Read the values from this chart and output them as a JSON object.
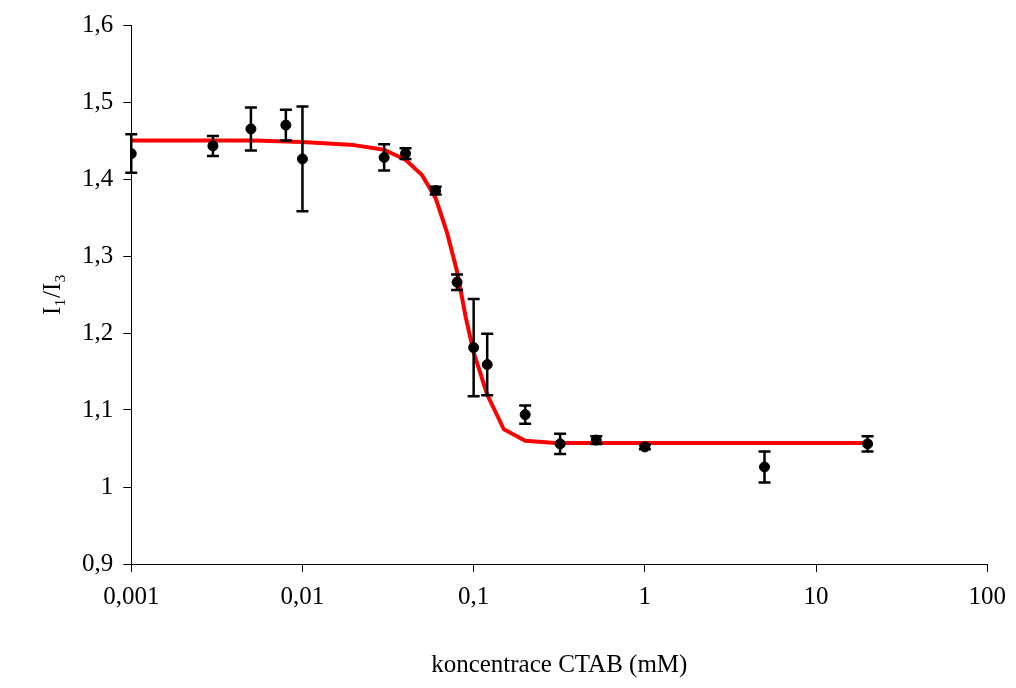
{
  "chart_data": {
    "type": "scatter",
    "xlabel": "koncentrace CTAB (mM)",
    "ylabel": "I₁/I₃",
    "log": "x",
    "grid": false,
    "legend": false,
    "marker": "circle",
    "xlim": [
      0.001,
      100
    ],
    "xticks": [
      {
        "value": 0.001,
        "label": "0,001"
      },
      {
        "value": 0.01,
        "label": "0,01"
      },
      {
        "value": 0.1,
        "label": "0,1"
      },
      1,
      10,
      100
    ],
    "ylim": [
      0.9,
      1.6
    ],
    "yticks": [
      {
        "value": 0.9,
        "label": "0,9"
      },
      1,
      {
        "value": 1.1,
        "label": "1,1"
      },
      {
        "value": 1.2,
        "label": "1,2"
      },
      {
        "value": 1.3,
        "label": "1,3"
      },
      {
        "value": 1.4,
        "label": "1,4"
      },
      {
        "value": 1.5,
        "label": "1,5"
      },
      {
        "value": 1.6,
        "label": "1,6"
      }
    ],
    "series": [
      {
        "color": "#000000",
        "x": [
          0.001,
          0.003,
          0.005,
          0.008,
          0.01,
          0.03,
          0.04,
          0.06,
          0.08,
          0.1,
          0.12,
          0.2,
          0.32,
          0.52,
          1,
          5,
          20
        ],
        "values": [
          1.433,
          1.443,
          1.465,
          1.47,
          1.426,
          1.428,
          1.433,
          1.385,
          1.266,
          1.181,
          1.159,
          1.094,
          1.056,
          1.061,
          1.052,
          1.026,
          1.056
        ],
        "errors": [
          0.025,
          0.013,
          0.028,
          0.02,
          0.068,
          0.017,
          0.007,
          0.005,
          0.01,
          0.063,
          0.04,
          0.012,
          0.013,
          0.005,
          0.003,
          0.02,
          0.01
        ]
      },
      {
        "type": "line",
        "color": "#ff0000",
        "marker": "none",
        "x": [
          0.001,
          0.005,
          0.01,
          0.02,
          0.03,
          0.04,
          0.05,
          0.06,
          0.07,
          0.08,
          0.09,
          0.1,
          0.12,
          0.15,
          0.2,
          0.3,
          1,
          20
        ],
        "values": [
          1.45,
          1.45,
          1.448,
          1.444,
          1.438,
          1.425,
          1.405,
          1.375,
          1.33,
          1.28,
          1.22,
          1.175,
          1.12,
          1.075,
          1.06,
          1.057,
          1.057,
          1.057
        ]
      }
    ]
  }
}
